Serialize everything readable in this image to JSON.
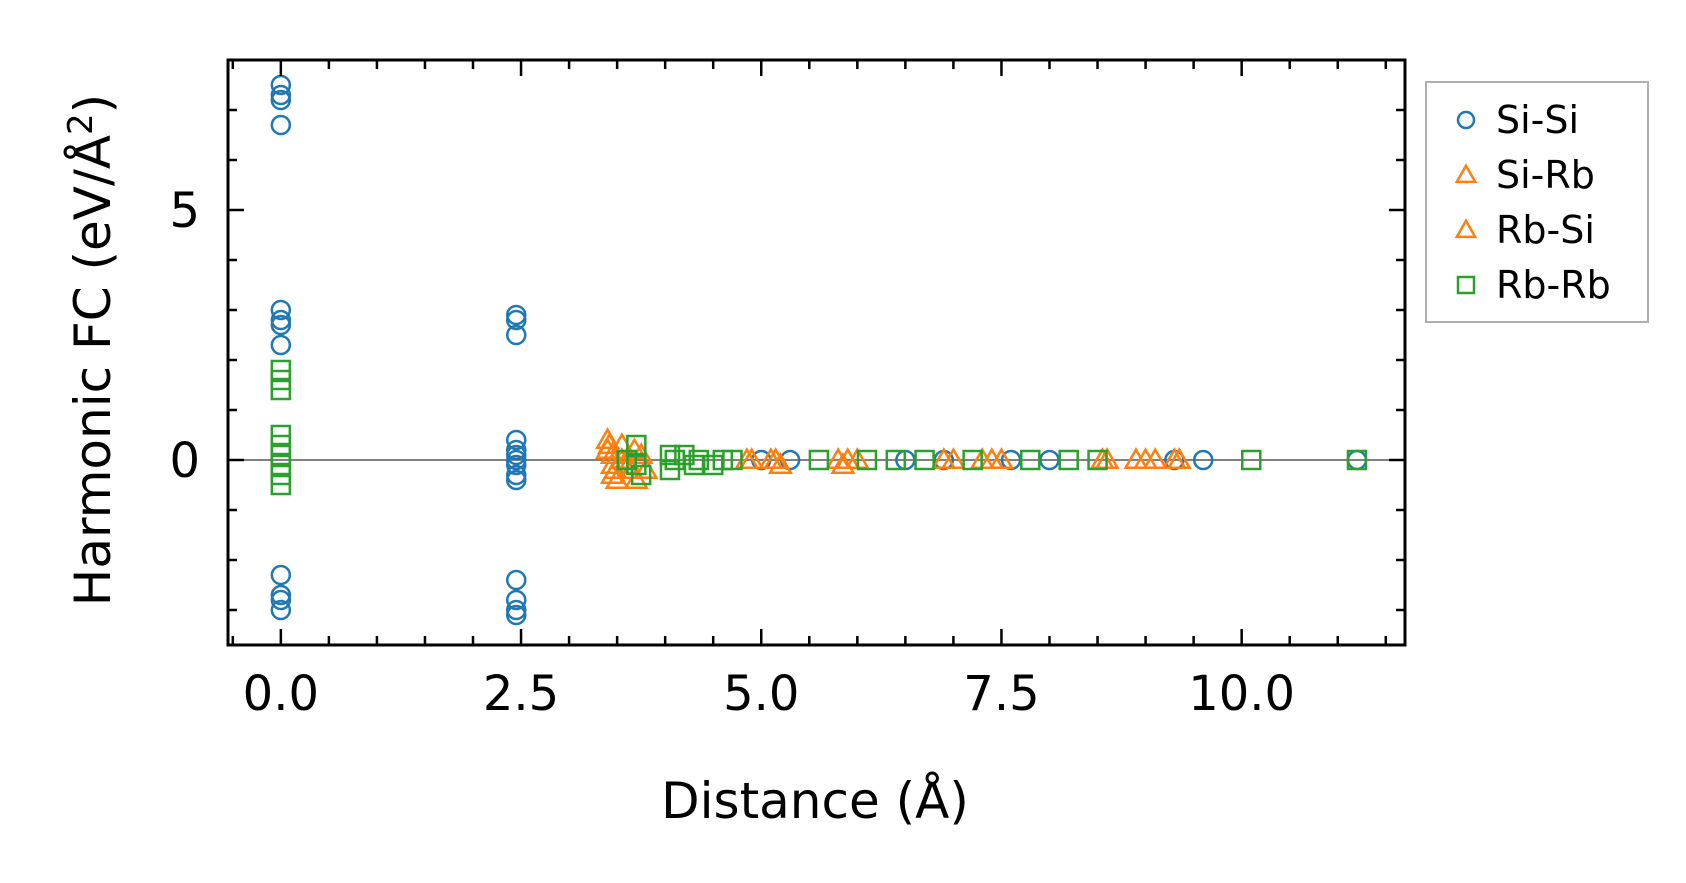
{
  "chart_data": {
    "type": "scatter",
    "title": "",
    "xlabel": "Distance (Å)",
    "ylabel_prefix": "Harmonic FC (eV/Å",
    "ylabel_sup": "2",
    "ylabel_suffix": ")",
    "xlim": [
      -0.55,
      11.7
    ],
    "ylim": [
      -3.7,
      8.0
    ],
    "x_ticks": [
      0.0,
      2.5,
      5.0,
      7.5,
      10.0
    ],
    "x_tick_labels": [
      "0.0",
      "2.5",
      "5.0",
      "7.5",
      "10.0"
    ],
    "y_ticks": [
      0,
      5
    ],
    "y_tick_labels": [
      "0",
      "5"
    ],
    "reference_line_y": 0,
    "legend_position": "outside-right-top",
    "series": [
      {
        "name": "Si-Si",
        "marker": "circle",
        "color": "#1f77b4",
        "points": [
          [
            0,
            7.5
          ],
          [
            0,
            7.3
          ],
          [
            0,
            7.2
          ],
          [
            0,
            6.7
          ],
          [
            0,
            3.0
          ],
          [
            0,
            2.8
          ],
          [
            0,
            2.7
          ],
          [
            0,
            2.3
          ],
          [
            0,
            -2.3
          ],
          [
            0,
            -2.7
          ],
          [
            0,
            -2.8
          ],
          [
            0,
            -3.0
          ],
          [
            2.45,
            2.9
          ],
          [
            2.45,
            2.8
          ],
          [
            2.45,
            2.5
          ],
          [
            2.45,
            0.4
          ],
          [
            2.45,
            0.2
          ],
          [
            2.45,
            0.1
          ],
          [
            2.45,
            0.0
          ],
          [
            2.45,
            -0.1
          ],
          [
            2.45,
            -0.3
          ],
          [
            2.45,
            -0.4
          ],
          [
            2.45,
            -2.4
          ],
          [
            2.45,
            -2.8
          ],
          [
            2.45,
            -3.0
          ],
          [
            2.45,
            -3.1
          ],
          [
            5.0,
            0.0
          ],
          [
            5.3,
            0.0
          ],
          [
            6.5,
            0.0
          ],
          [
            6.9,
            0.0
          ],
          [
            7.6,
            0.0
          ],
          [
            8.0,
            0.0
          ],
          [
            9.3,
            0.0
          ],
          [
            9.6,
            0.0
          ],
          [
            11.2,
            0.0
          ]
        ]
      },
      {
        "name": "Si-Rb",
        "marker": "triangle",
        "color": "#ff7f0e",
        "points": [
          [
            3.4,
            0.4
          ],
          [
            3.4,
            0.2
          ],
          [
            3.45,
            0.1
          ],
          [
            3.45,
            -0.1
          ],
          [
            3.45,
            -0.3
          ],
          [
            3.5,
            -0.4
          ],
          [
            3.55,
            0.3
          ],
          [
            3.6,
            0.0
          ],
          [
            3.65,
            -0.2
          ],
          [
            3.7,
            -0.4
          ],
          [
            3.75,
            0.1
          ],
          [
            3.8,
            -0.2
          ],
          [
            4.85,
            0.0
          ],
          [
            5.1,
            0.0
          ],
          [
            5.2,
            -0.1
          ],
          [
            5.8,
            0.0
          ],
          [
            5.9,
            0.0
          ],
          [
            6.0,
            0.0
          ],
          [
            7.0,
            0.0
          ],
          [
            7.3,
            0.0
          ],
          [
            7.5,
            0.0
          ],
          [
            8.6,
            0.0
          ],
          [
            8.9,
            0.0
          ],
          [
            9.1,
            0.0
          ],
          [
            9.3,
            0.0
          ]
        ]
      },
      {
        "name": "Rb-Si",
        "marker": "triangle",
        "color": "#ff7f0e",
        "points": [
          [
            3.42,
            0.3
          ],
          [
            3.48,
            -0.2
          ],
          [
            3.55,
            0.0
          ],
          [
            3.62,
            -0.1
          ],
          [
            3.68,
            0.2
          ],
          [
            4.9,
            0.0
          ],
          [
            5.15,
            0.0
          ],
          [
            5.85,
            -0.1
          ],
          [
            6.9,
            0.0
          ],
          [
            7.4,
            0.0
          ],
          [
            8.55,
            0.0
          ],
          [
            9.0,
            0.0
          ],
          [
            9.35,
            0.0
          ]
        ]
      },
      {
        "name": "Rb-Rb",
        "marker": "square",
        "color": "#2ca02c",
        "points": [
          [
            0,
            1.8
          ],
          [
            0,
            1.6
          ],
          [
            0,
            1.4
          ],
          [
            0,
            0.5
          ],
          [
            0,
            0.3
          ],
          [
            0,
            0.1
          ],
          [
            0,
            -0.1
          ],
          [
            0,
            -0.3
          ],
          [
            0,
            -0.5
          ],
          [
            3.6,
            0.0
          ],
          [
            3.7,
            0.3
          ],
          [
            3.7,
            -0.1
          ],
          [
            3.75,
            -0.3
          ],
          [
            4.05,
            0.1
          ],
          [
            4.05,
            -0.2
          ],
          [
            4.1,
            0.0
          ],
          [
            4.2,
            0.1
          ],
          [
            4.3,
            -0.1
          ],
          [
            4.35,
            0.0
          ],
          [
            4.5,
            -0.1
          ],
          [
            4.6,
            0.0
          ],
          [
            4.7,
            0.0
          ],
          [
            5.6,
            0.0
          ],
          [
            6.1,
            0.0
          ],
          [
            6.4,
            0.0
          ],
          [
            6.7,
            0.0
          ],
          [
            7.2,
            0.0
          ],
          [
            7.8,
            0.0
          ],
          [
            8.2,
            0.0
          ],
          [
            8.5,
            0.0
          ],
          [
            10.1,
            0.0
          ],
          [
            11.2,
            0.0
          ]
        ]
      }
    ]
  }
}
